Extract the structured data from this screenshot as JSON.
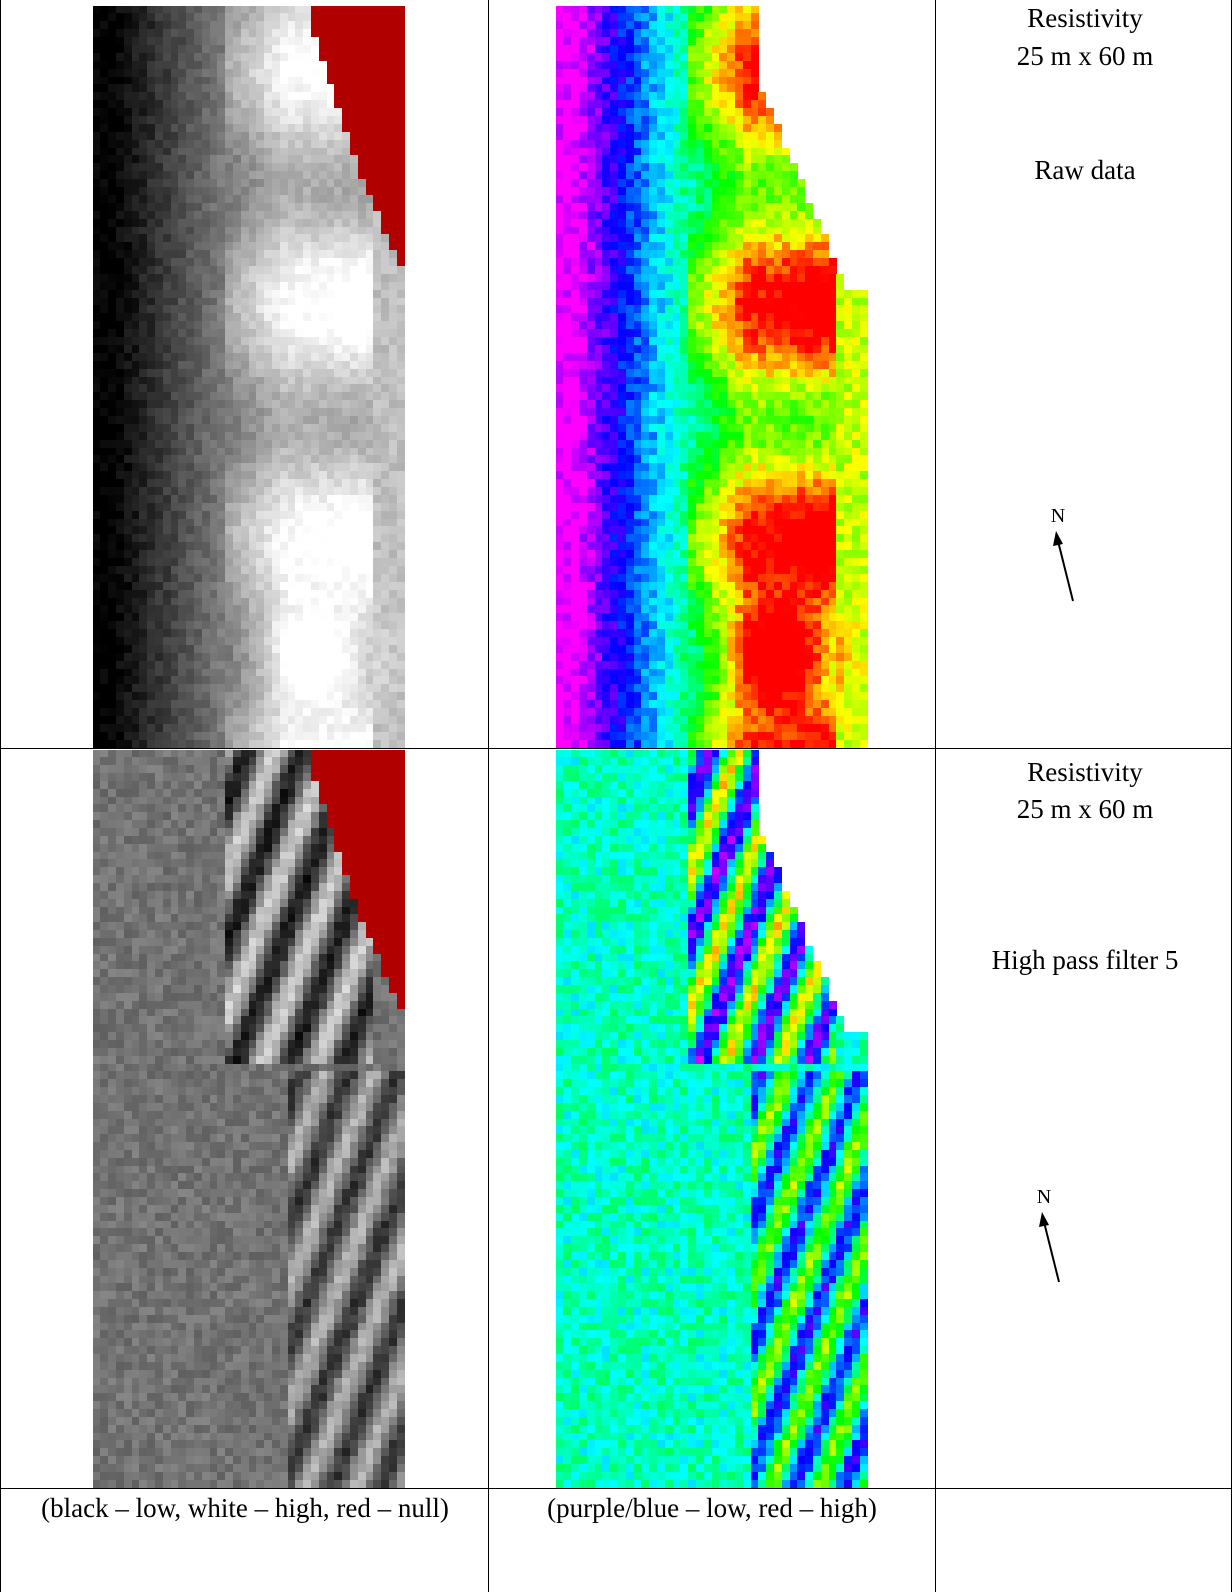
{
  "rows": [
    {
      "title": "Resistivity",
      "dimensions": "25 m x 60 m",
      "processing": "Raw data",
      "north_label": "N"
    },
    {
      "title": "Resistivity",
      "dimensions": "25 m x 60 m",
      "processing": "High pass filter 5",
      "north_label": "N"
    }
  ],
  "captions": {
    "greyscale_legend": "(black – low, white – high, red – null)",
    "colour_legend": "(purple/blue – low, red – high)"
  },
  "palette": {
    "null": "#b00000",
    "grey_low": "#000000",
    "grey_high": "#ffffff",
    "colour_scale": [
      "#ff00ff",
      "#0000ff",
      "#00ffff",
      "#00ff00",
      "#ffff00",
      "#ff0000"
    ]
  },
  "icons": {
    "north_arrow": "north-arrow-icon"
  }
}
